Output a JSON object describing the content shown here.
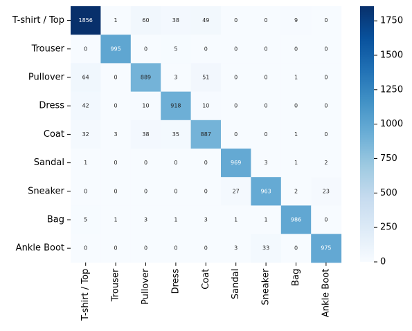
{
  "chart_data": {
    "type": "heatmap",
    "title": "",
    "xlabel": "",
    "ylabel": "",
    "rows": [
      "T-shirt / Top",
      "Trouser",
      "Pullover",
      "Dress",
      "Coat",
      "Sandal",
      "Sneaker",
      "Bag",
      "Ankle Boot"
    ],
    "columns": [
      "T-shirt / Top",
      "Trouser",
      "Pullover",
      "Dress",
      "Coat",
      "Sandal",
      "Sneaker",
      "Bag",
      "Ankle Boot"
    ],
    "values": [
      [
        1856,
        1,
        60,
        38,
        49,
        0,
        0,
        9,
        0
      ],
      [
        0,
        995,
        0,
        5,
        0,
        0,
        0,
        0,
        0
      ],
      [
        64,
        0,
        889,
        3,
        51,
        0,
        0,
        1,
        0
      ],
      [
        42,
        0,
        10,
        918,
        10,
        0,
        0,
        0,
        0
      ],
      [
        32,
        3,
        38,
        35,
        887,
        0,
        0,
        1,
        0
      ],
      [
        1,
        0,
        0,
        0,
        0,
        969,
        3,
        1,
        2
      ],
      [
        0,
        0,
        0,
        0,
        0,
        27,
        963,
        2,
        23
      ],
      [
        5,
        1,
        3,
        1,
        3,
        1,
        1,
        986,
        0
      ],
      [
        0,
        0,
        0,
        0,
        0,
        3,
        33,
        0,
        975
      ]
    ],
    "colorbar": {
      "colormap": "Blues",
      "vmin": 0,
      "vmax": 1856,
      "ticks": [
        0,
        250,
        500,
        750,
        1000,
        1250,
        1500,
        1750
      ]
    }
  }
}
